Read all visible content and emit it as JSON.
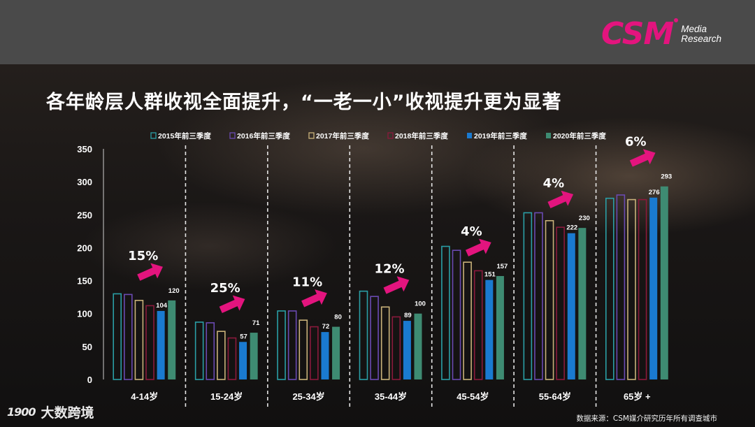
{
  "header": {
    "logo_mark": "CSM",
    "logo_line1": "Media",
    "logo_line2": "Research"
  },
  "title": "各年龄层人群收视全面提升，“一老一小”收视提升更为显著",
  "chart_data": {
    "type": "bar",
    "ylim": [
      0,
      350
    ],
    "yticks": [
      0,
      50,
      100,
      150,
      200,
      250,
      300,
      350
    ],
    "categories": [
      "4-14岁",
      "15-24岁",
      "25-34岁",
      "35-44岁",
      "45-54岁",
      "55-64岁",
      "65岁 +"
    ],
    "series": [
      {
        "name": "2015年前三季度",
        "color": "#2a9fa6",
        "style": "outline",
        "values": [
          130,
          87,
          104,
          134,
          202,
          253,
          275
        ]
      },
      {
        "name": "2016年前三季度",
        "color": "#6a4ab2",
        "style": "outline",
        "values": [
          129,
          86,
          104,
          126,
          196,
          253,
          280
        ]
      },
      {
        "name": "2017年前三季度",
        "color": "#c9b27a",
        "style": "outline",
        "values": [
          120,
          73,
          90,
          110,
          178,
          241,
          273
        ]
      },
      {
        "name": "2018年前三季度",
        "color": "#8a1a3c",
        "style": "outline",
        "values": [
          112,
          63,
          80,
          95,
          165,
          231,
          273
        ]
      },
      {
        "name": "2019年前三季度",
        "color": "#1a7ad0",
        "style": "solid",
        "values": [
          104,
          57,
          72,
          89,
          151,
          222,
          276
        ]
      },
      {
        "name": "2020年前三季度",
        "color": "#3e8b72",
        "style": "solid",
        "values": [
          120,
          71,
          80,
          100,
          157,
          230,
          293
        ]
      }
    ],
    "labels_2019": [
      "104",
      "57",
      "72",
      "89",
      "151",
      "222",
      "276"
    ],
    "labels_2020": [
      "120",
      "71",
      "80",
      "100",
      "157",
      "230",
      "293"
    ],
    "growth": [
      "15%",
      "25%",
      "11%",
      "12%",
      "4%",
      "4%",
      "6%"
    ],
    "arrow_color": "#e3147e"
  },
  "footer": {
    "watermark_logo": "1900",
    "watermark_text": "大数跨境",
    "source": "数据来源：CSM媒介研究历年所有调查城市"
  }
}
